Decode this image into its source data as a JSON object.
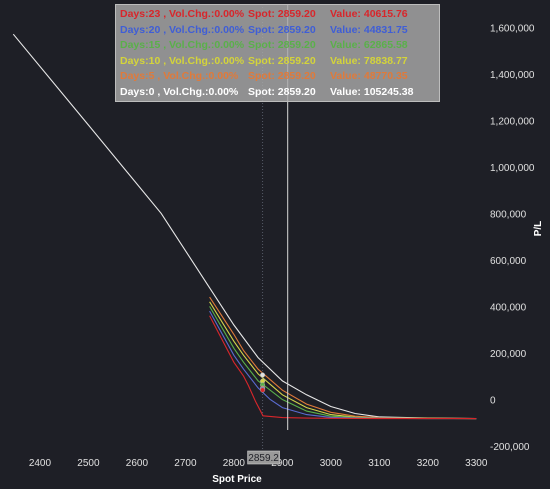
{
  "chart_data": {
    "type": "line",
    "xlabel": "Spot Price",
    "ylabel": "P/L",
    "xlim": [
      2330,
      3320
    ],
    "ylim": [
      -230000,
      1700000
    ],
    "x_ticks": [
      2400,
      2500,
      2600,
      2700,
      2800,
      2900,
      3000,
      3100,
      3200,
      3300
    ],
    "y_ticks": [
      -200000,
      0,
      200000,
      400000,
      600000,
      800000,
      1000000,
      1200000,
      1400000,
      1600000
    ],
    "x_tick_labels": [
      "2400",
      "2500",
      "2600",
      "2700",
      "2800",
      "2900",
      "3000",
      "3100",
      "3200",
      "3300"
    ],
    "y_tick_labels": [
      "-200,000",
      "0",
      "200,000",
      "400,000",
      "600,000",
      "800,000",
      "1,000,000",
      "1,200,000",
      "1,400,000",
      "1,600,000"
    ],
    "cursor_x": 2911,
    "crosshair_label": "2859.2",
    "crosshair_x": 2859.2,
    "series": [
      {
        "color": "#e8e8e8",
        "points": [
          [
            2345,
            1570000
          ],
          [
            2500,
            1180000
          ],
          [
            2650,
            800000
          ],
          [
            2750,
            480000
          ],
          [
            2800,
            320000
          ],
          [
            2850,
            180000
          ],
          [
            2900,
            80000
          ],
          [
            2950,
            20000
          ],
          [
            3000,
            -30000
          ],
          [
            3050,
            -60000
          ],
          [
            3100,
            -75000
          ],
          [
            3200,
            -80000
          ],
          [
            3300,
            -82000
          ]
        ]
      },
      {
        "color": "#e07a3a",
        "points": [
          [
            2750,
            440000
          ],
          [
            2800,
            280000
          ],
          [
            2820,
            210000
          ],
          [
            2850,
            130000
          ],
          [
            2900,
            40000
          ],
          [
            2950,
            -20000
          ],
          [
            3000,
            -55000
          ],
          [
            3050,
            -72000
          ],
          [
            3100,
            -78000
          ],
          [
            3200,
            -81000
          ],
          [
            3300,
            -82000
          ]
        ]
      },
      {
        "color": "#d4d44a",
        "points": [
          [
            2750,
            420000
          ],
          [
            2800,
            250000
          ],
          [
            2820,
            190000
          ],
          [
            2850,
            110000
          ],
          [
            2900,
            20000
          ],
          [
            2950,
            -35000
          ],
          [
            3000,
            -65000
          ],
          [
            3050,
            -76000
          ],
          [
            3100,
            -80000
          ],
          [
            3200,
            -81000
          ],
          [
            3300,
            -82000
          ]
        ]
      },
      {
        "color": "#5ab04a",
        "points": [
          [
            2750,
            400000
          ],
          [
            2800,
            220000
          ],
          [
            2820,
            160000
          ],
          [
            2850,
            80000
          ],
          [
            2900,
            0
          ],
          [
            2950,
            -50000
          ],
          [
            3000,
            -72000
          ],
          [
            3050,
            -78000
          ],
          [
            3100,
            -81000
          ],
          [
            3200,
            -82000
          ],
          [
            3300,
            -82000
          ]
        ]
      },
      {
        "color": "#5a6bd0",
        "points": [
          [
            2750,
            380000
          ],
          [
            2800,
            190000
          ],
          [
            2820,
            130000
          ],
          [
            2850,
            50000
          ],
          [
            2875,
            0
          ],
          [
            2900,
            -35000
          ],
          [
            2950,
            -65000
          ],
          [
            3000,
            -77000
          ],
          [
            3050,
            -80000
          ],
          [
            3100,
            -81000
          ],
          [
            3200,
            -82000
          ],
          [
            3300,
            -82000
          ]
        ]
      },
      {
        "color": "#d8262b",
        "points": [
          [
            2750,
            360000
          ],
          [
            2800,
            160000
          ],
          [
            2820,
            100000
          ],
          [
            2830,
            60000
          ],
          [
            2845,
            -10000
          ],
          [
            2860,
            -70000
          ],
          [
            2900,
            -78000
          ],
          [
            2950,
            -80000
          ],
          [
            3000,
            -81000
          ],
          [
            3100,
            -82000
          ],
          [
            3200,
            -82000
          ],
          [
            3300,
            -82000
          ]
        ]
      }
    ],
    "markers": [
      {
        "x": 2859.2,
        "y": 105245.38,
        "color": "#e0e0e0"
      },
      {
        "x": 2859.2,
        "y": 78838.77,
        "color": "#d4d44a"
      },
      {
        "x": 2859.2,
        "y": 62865.58,
        "color": "#5ab04a"
      },
      {
        "x": 2859.2,
        "y": 48770.35,
        "color": "#e07a3a"
      },
      {
        "x": 2859.2,
        "y": 44831.75,
        "color": "#5a6bd0"
      },
      {
        "x": 2859.2,
        "y": 40615.76,
        "color": "#d8262b"
      }
    ]
  },
  "legend": [
    {
      "days": "Days:23 , Vol.Chg.:0.00%",
      "spot": "Spot: 2859.20",
      "value": "Value: 40615.76",
      "color": "#d8262b"
    },
    {
      "days": "Days:20 , Vol.Chg.:0.00%",
      "spot": "Spot: 2859.20",
      "value": "Value: 44831.75",
      "color": "#3f5ed6"
    },
    {
      "days": "Days:15 , Vol.Chg.:0.00%",
      "spot": "Spot: 2859.20",
      "value": "Value: 62865.58",
      "color": "#5ab04a"
    },
    {
      "days": "Days:10 , Vol.Chg.:0.00%",
      "spot": "Spot: 2859.20",
      "value": "Value: 78838.77",
      "color": "#d4d43a"
    },
    {
      "days": "Days:5 , Vol.Chg.:0.00%",
      "spot": "Spot: 2859.20",
      "value": "Value: 48770.35",
      "color": "#e07a3a"
    },
    {
      "days": "Days:0 , Vol.Chg.:0.00%",
      "spot": "Spot: 2859.20",
      "value": "Value: 105245.38",
      "color": "#ffffff"
    }
  ]
}
